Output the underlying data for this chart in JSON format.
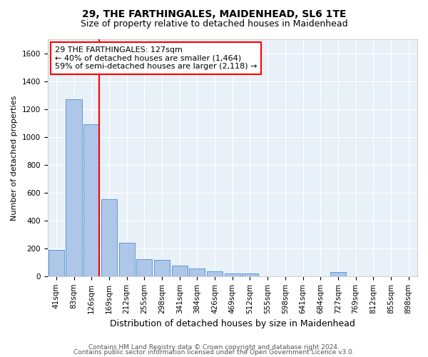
{
  "title": "29, THE FARTHINGALES, MAIDENHEAD, SL6 1TE",
  "subtitle": "Size of property relative to detached houses in Maidenhead",
  "xlabel": "Distribution of detached houses by size in Maidenhead",
  "ylabel": "Number of detached properties",
  "footer_line1": "Contains HM Land Registry data © Crown copyright and database right 2024.",
  "footer_line2": "Contains public sector information licensed under the Open Government Licence v3.0.",
  "bar_labels": [
    "41sqm",
    "83sqm",
    "126sqm",
    "169sqm",
    "212sqm",
    "255sqm",
    "298sqm",
    "341sqm",
    "384sqm",
    "426sqm",
    "469sqm",
    "512sqm",
    "555sqm",
    "598sqm",
    "641sqm",
    "684sqm",
    "727sqm",
    "769sqm",
    "812sqm",
    "855sqm",
    "898sqm"
  ],
  "bar_values": [
    190,
    1270,
    1090,
    550,
    240,
    120,
    115,
    75,
    55,
    35,
    20,
    20,
    0,
    0,
    0,
    0,
    30,
    0,
    0,
    0,
    0
  ],
  "bar_color": "#aec6e8",
  "bar_edge_color": "#5b9bd5",
  "ylim": [
    0,
    1700
  ],
  "yticks": [
    0,
    200,
    400,
    600,
    800,
    1000,
    1200,
    1400,
    1600
  ],
  "red_line_index": 2,
  "annotation_line1": "29 THE FARTHINGALES: 127sqm",
  "annotation_line2": "← 40% of detached houses are smaller (1,464)",
  "annotation_line3": "59% of semi-detached houses are larger (2,118) →",
  "background_color": "#e8f0f8",
  "grid_color": "#ffffff",
  "title_fontsize": 10,
  "subtitle_fontsize": 9,
  "ylabel_fontsize": 8,
  "xlabel_fontsize": 9,
  "tick_fontsize": 7.5,
  "footer_fontsize": 6.5,
  "annotation_fontsize": 8
}
